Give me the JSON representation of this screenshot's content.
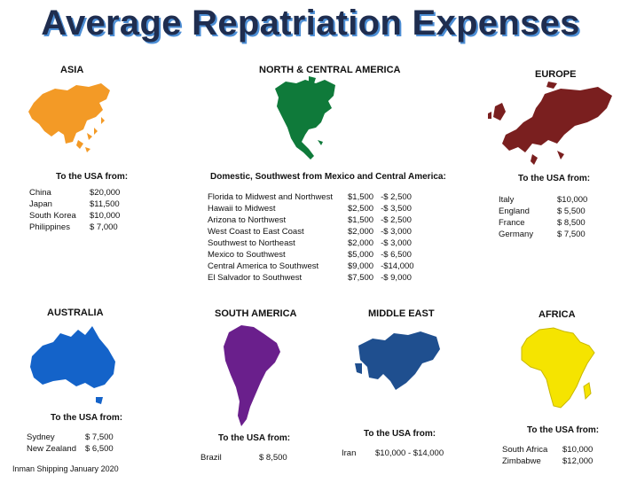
{
  "title": "Average Repatriation Expenses",
  "footer": "Inman Shipping January 2020",
  "colors": {
    "title": "#1f2d4f",
    "title_shadow": "#4d8fd6",
    "asia": "#f39a26",
    "north_central_america": "#0f7a3a",
    "europe": "#7a1f1f",
    "australia": "#1463c9",
    "south_america": "#6a1f8c",
    "middle_east": "#1f4f8f",
    "africa": "#f5e400"
  },
  "regions": {
    "asia": {
      "name": "ASIA",
      "subhead": "To the USA from:",
      "rows": [
        {
          "country": "China",
          "cost": "$20,000"
        },
        {
          "country": "Japan",
          "cost": "$11,500"
        },
        {
          "country": "South Korea",
          "cost": "$10,000"
        },
        {
          "country": "Philippines",
          "cost": "$ 7,000"
        }
      ]
    },
    "north_central_america": {
      "name": "NORTH & CENTRAL AMERICA",
      "subhead": "Domestic, Southwest from Mexico and Central America:",
      "rows": [
        {
          "route": "Florida to Midwest and Northwest",
          "low": "$1,500",
          "high": "-$ 2,500"
        },
        {
          "route": "Hawaii to Midwest",
          "low": "$2,500",
          "high": "-$ 3,500"
        },
        {
          "route": "Arizona to Northwest",
          "low": "$1,500",
          "high": "-$ 2,500"
        },
        {
          "route": "West Coast to East Coast",
          "low": "$2,000",
          "high": "-$ 3,000"
        },
        {
          "route": "Southwest to Northeast",
          "low": "$2,000",
          "high": "-$ 3,000"
        },
        {
          "route": "Mexico to Southwest",
          "low": "$5,000",
          "high": "-$ 6,500"
        },
        {
          "route": "Central America to Southwest",
          "low": "$9,000",
          "high": "-$14,000"
        },
        {
          "route": "El Salvador to Southwest",
          "low": "$7,500",
          "high": "-$ 9,000"
        }
      ]
    },
    "europe": {
      "name": "EUROPE",
      "subhead": "To the USA from:",
      "rows": [
        {
          "country": "Italy",
          "cost": "$10,000"
        },
        {
          "country": "England",
          "cost": "$ 5,500"
        },
        {
          "country": "France",
          "cost": "$ 8,500"
        },
        {
          "country": "Germany",
          "cost": "$ 7,500"
        }
      ]
    },
    "australia": {
      "name": "AUSTRALIA",
      "subhead": "To the USA from:",
      "rows": [
        {
          "country": "Sydney",
          "cost": "$ 7,500"
        },
        {
          "country": "New Zealand",
          "cost": "$ 6,500"
        }
      ]
    },
    "south_america": {
      "name": "SOUTH AMERICA",
      "subhead": "To the USA from:",
      "rows": [
        {
          "country": "Brazil",
          "cost": "$ 8,500"
        }
      ]
    },
    "middle_east": {
      "name": "MIDDLE EAST",
      "subhead": "To the USA from:",
      "rows": [
        {
          "country": "Iran",
          "cost": "$10,000 - $14,000"
        }
      ]
    },
    "africa": {
      "name": "AFRICA",
      "subhead": "To the USA from:",
      "rows": [
        {
          "country": "South Africa",
          "cost": "$10,000"
        },
        {
          "country": "Zimbabwe",
          "cost": "$12,000"
        }
      ]
    }
  }
}
